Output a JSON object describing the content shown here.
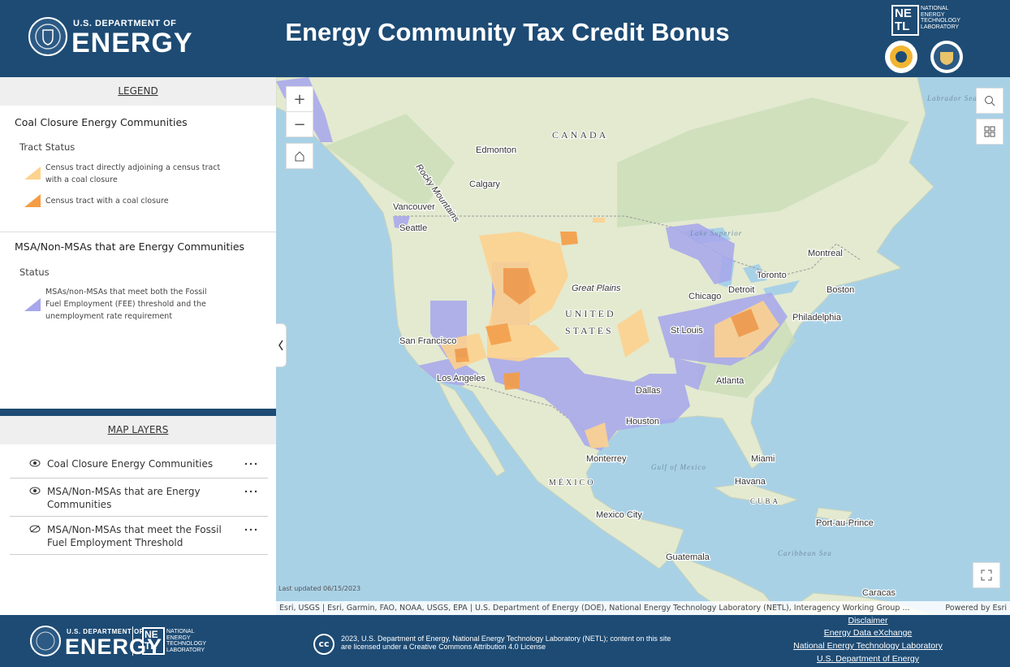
{
  "header": {
    "agency_small": "U.S. DEPARTMENT OF",
    "agency_big": "ENERGY",
    "title": "Energy Community Tax Credit Bonus",
    "lab_mark": [
      "NE",
      "TL"
    ],
    "lab_name": [
      "NATIONAL",
      "ENERGY",
      "TECHNOLOGY",
      "LABORATORY"
    ]
  },
  "legend": {
    "heading": "LEGEND",
    "groups": [
      {
        "title": "Coal Closure Energy Communities",
        "subtitle": "Tract Status",
        "items": [
          {
            "label": "Census tract directly adjoining a census tract with a coal closure",
            "color": "#fdd28f"
          },
          {
            "label": "Census tract with a coal closure",
            "color": "#f59d45"
          }
        ]
      },
      {
        "title": "MSA/Non-MSAs that are Energy Communities",
        "subtitle": "Status",
        "items": [
          {
            "label": "MSAs/non-MSAs that meet both the Fossil Fuel Employment (FEE) threshold and the unemployment rate requirement",
            "color": "#a7a6ec"
          }
        ]
      }
    ]
  },
  "layers": {
    "heading": "MAP LAYERS",
    "items": [
      "Coal Closure Energy Communities",
      "MSA/Non-MSAs that are Energy Communities",
      "MSA/Non-MSAs that meet the Fossil Fuel Employment Threshold"
    ]
  },
  "map": {
    "labels": [
      "CANADA",
      "Edmonton",
      "Calgary",
      "Rocky Mountains",
      "Vancouver",
      "Seattle",
      "Lake Superior",
      "Montreal",
      "Toronto",
      "Chicago",
      "Detroit",
      "Boston",
      "Great Plains",
      "UNITED",
      "STATES",
      "Philadelphia",
      "San Francisco",
      "St Louis",
      "Los Angeles",
      "Atlanta",
      "Dallas",
      "Houston",
      "Monterrey",
      "Gulf of Mexico",
      "Miami",
      "MÉXICO",
      "Havana",
      "CUBA",
      "Mexico City",
      "Port-au-Prince",
      "Guatemala",
      "Caribbean Sea",
      "Caracas",
      "Labrador Sea"
    ],
    "last_updated": "Last updated 06/15/2023",
    "attribution": "Esri, USGS | Esri, Garmin, FAO, NOAA, USGS, EPA | U.S. Department of Energy (DOE), National Energy Technology Laboratory (NETL), Interagency Working Group ...",
    "powered_by": "Powered by Esri"
  },
  "footer": {
    "license": "2023, U.S. Department of Energy, National Energy Technology Laboratory (NETL); content on this site are licensed under a Creative Commons Attribution 4.0 License",
    "cc": "cc",
    "links": [
      "Disclaimer",
      "Energy Data eXchange",
      "National Energy Technology Laboratory",
      "U.S. Department of Energy"
    ]
  }
}
